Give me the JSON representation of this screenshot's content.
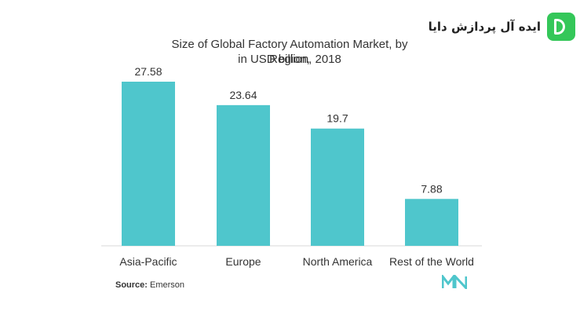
{
  "watermark": {
    "text": "ایده آل پردازش دایا",
    "logo_color": "#34c759"
  },
  "chart_data": {
    "type": "bar",
    "title_line1": "Size of Global Factory Automation Market, by Region,",
    "title_line2": "in USD billion, 2018",
    "categories": [
      "Asia-Pacific",
      "Europe",
      "North America",
      "Rest of the World"
    ],
    "values": [
      27.58,
      23.64,
      19.7,
      7.88
    ],
    "value_labels": [
      "27.58",
      "23.64",
      "19.7",
      "7.88"
    ],
    "xlabel": "",
    "ylabel": "",
    "ylim": [
      0,
      27.58
    ],
    "grid": false,
    "legend": "none",
    "bar_color": "#4fc6cc"
  },
  "source": {
    "label": "Source:",
    "text": "Emerson"
  },
  "brand_logo_color": "#4fc6cc"
}
